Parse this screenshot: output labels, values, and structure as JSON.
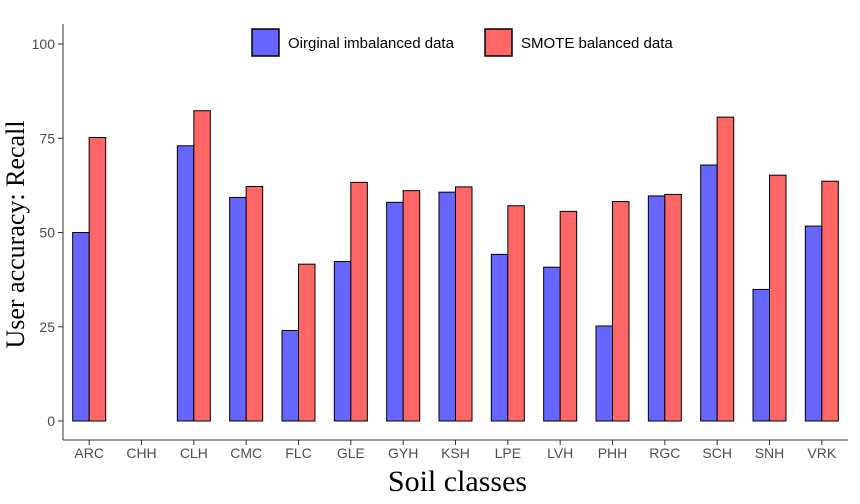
{
  "chart_data": {
    "type": "bar",
    "title": "",
    "xlabel": "Soil classes",
    "ylabel": "User accuracy: Recall",
    "ylim": [
      0,
      100
    ],
    "yticks": [
      0,
      25,
      50,
      75,
      100
    ],
    "grid": false,
    "legend_position": "top",
    "categories": [
      "ARC",
      "CHH",
      "CLH",
      "CMC",
      "FLC",
      "GLE",
      "GYH",
      "KSH",
      "LPE",
      "LVH",
      "PHH",
      "RGC",
      "SCH",
      "SNH",
      "VRK"
    ],
    "series": [
      {
        "name": "Oirginal imbalanced data",
        "color": "#6666ff",
        "values": [
          50,
          0,
          73,
          59.3,
          24,
          42.3,
          58,
          60.7,
          44.2,
          40.8,
          25.2,
          59.7,
          67.9,
          34.9,
          51.7
        ]
      },
      {
        "name": "SMOTE balanced data",
        "color": "#ff6666",
        "values": [
          75.2,
          0,
          82.3,
          62.2,
          41.6,
          63.3,
          61.1,
          62.1,
          57.1,
          55.6,
          58.2,
          60.1,
          80.6,
          65.2,
          63.6
        ]
      }
    ]
  }
}
